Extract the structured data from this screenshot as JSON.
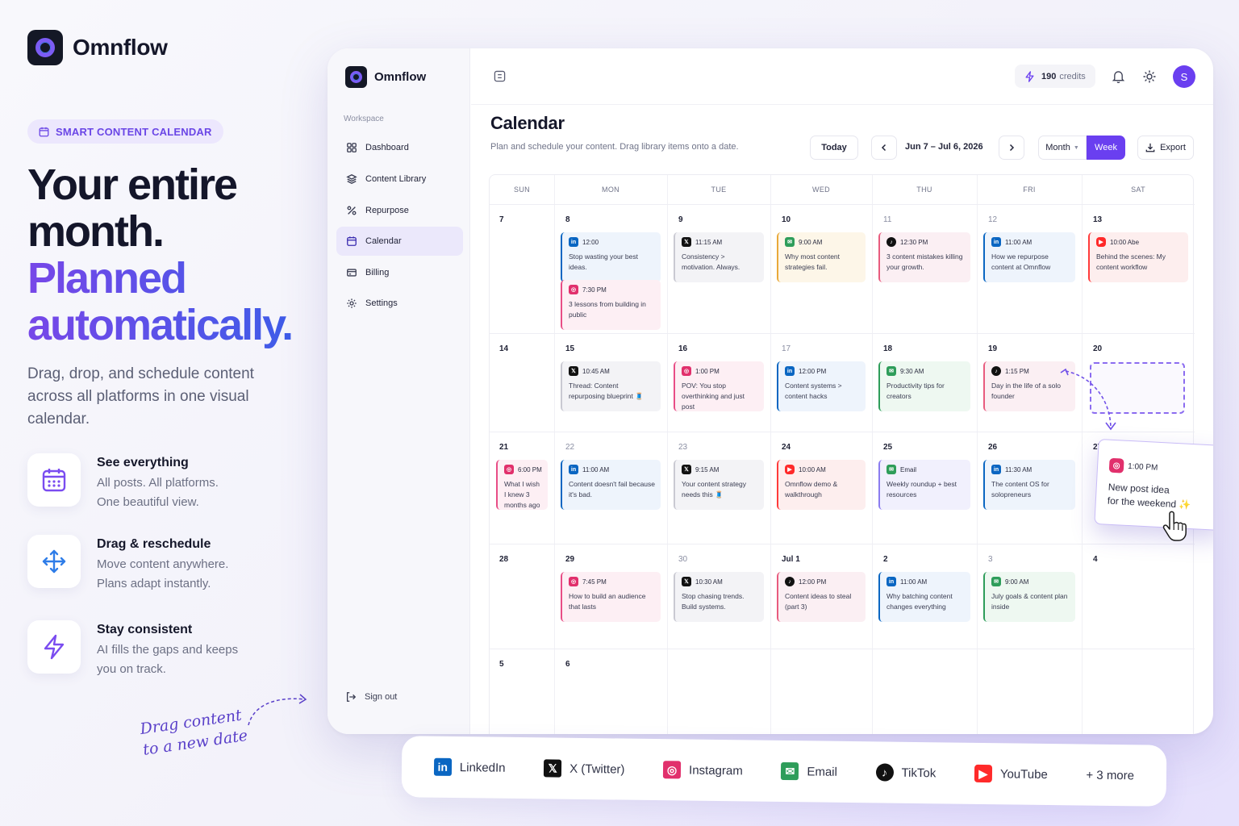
{
  "brand": {
    "name": "Omnflow"
  },
  "hero": {
    "pill": "SMART CONTENT CALENDAR",
    "line1": "Your entire",
    "line2": "month.",
    "line3": "Planned",
    "line4": "automatically.",
    "subtitle": "Drag, drop, and schedule content across all platforms in one visual calendar.",
    "features": [
      {
        "icon": "calendar-grid-icon",
        "title": "See everything",
        "desc1": "All posts. All platforms.",
        "desc2": "One beautiful view."
      },
      {
        "icon": "move-arrows-icon",
        "title": "Drag & reschedule",
        "desc1": "Move content anywhere.",
        "desc2": "Plans adapt instantly."
      },
      {
        "icon": "lightning-icon",
        "title": "Stay consistent",
        "desc1": "AI fills the gaps and keeps",
        "desc2": "you on track."
      }
    ],
    "handwritten1": "Drag content",
    "handwritten2": "to a new date"
  },
  "sidebar": {
    "workspace": "Workspace",
    "items": [
      {
        "label": "Dashboard",
        "icon": "dashboard-icon"
      },
      {
        "label": "Content Library",
        "icon": "layers-icon"
      },
      {
        "label": "Repurpose",
        "icon": "repurpose-icon"
      },
      {
        "label": "Calendar",
        "icon": "calendar-icon",
        "active": true
      },
      {
        "label": "Billing",
        "icon": "billing-icon"
      },
      {
        "label": "Settings",
        "icon": "gear-icon"
      }
    ],
    "signout": "Sign out"
  },
  "topbar": {
    "credits": "190",
    "credits_label": "credits",
    "avatar": "S"
  },
  "page": {
    "title": "Calendar",
    "desc": "Plan and schedule your content. Drag library items onto a date.",
    "today": "Today",
    "range": "Jun 7 – Jul 6, 2026",
    "month": "Month",
    "week": "Week",
    "export": "Export"
  },
  "calendar": {
    "dow": [
      "SUN",
      "MON",
      "TUE",
      "WED",
      "THU",
      "FRI",
      "SAT"
    ],
    "weeks": [
      [
        {
          "d": "7"
        },
        {
          "d": "8"
        },
        {
          "d": "9"
        },
        {
          "d": "10"
        },
        {
          "d": "11",
          "m": true
        },
        {
          "d": "12",
          "m": true
        },
        {
          "d": "13"
        }
      ],
      [
        {
          "d": "14"
        },
        {
          "d": "15"
        },
        {
          "d": "16"
        },
        {
          "d": "17",
          "m": true
        },
        {
          "d": "18"
        },
        {
          "d": "19"
        },
        {
          "d": "20"
        }
      ],
      [
        {
          "d": "21"
        },
        {
          "d": "22",
          "m": true
        },
        {
          "d": "23",
          "m": true
        },
        {
          "d": "24"
        },
        {
          "d": "25"
        },
        {
          "d": "26"
        },
        {
          "d": "27"
        }
      ],
      [
        {
          "d": "28"
        },
        {
          "d": "29"
        },
        {
          "d": "30",
          "m": true
        },
        {
          "d": "Jul 1"
        },
        {
          "d": "2"
        },
        {
          "d": "3",
          "m": true
        },
        {
          "d": "4"
        }
      ],
      [
        {
          "d": "5"
        },
        {
          "d": "6"
        },
        {
          "d": ""
        },
        {
          "d": ""
        },
        {
          "d": ""
        },
        {
          "d": ""
        },
        {
          "d": ""
        }
      ]
    ],
    "events": [
      {
        "w": 0,
        "c": 1,
        "slot": 0,
        "p": "linkedin",
        "time": "12:00",
        "text": "Stop wasting your best ideas."
      },
      {
        "w": 0,
        "c": 1,
        "slot": 1,
        "p": "instagram",
        "time": "7:30 PM",
        "text": "3 lessons from building in public"
      },
      {
        "w": 0,
        "c": 2,
        "slot": 0,
        "p": "x",
        "time": "11:15 AM",
        "text": "Consistency > motivation. Always."
      },
      {
        "w": 0,
        "c": 3,
        "slot": 0,
        "p": "email",
        "time": "9:00 AM",
        "text": "Why most content strategies fail."
      },
      {
        "w": 0,
        "c": 4,
        "slot": 0,
        "p": "tiktok",
        "time": "12:30 PM",
        "text": "3 content mistakes killing your growth."
      },
      {
        "w": 0,
        "c": 5,
        "slot": 0,
        "p": "linkedin",
        "time": "11:00 AM",
        "text": "How we repurpose content at Omnflow"
      },
      {
        "w": 0,
        "c": 6,
        "slot": 0,
        "p": "youtube",
        "time": "10:00 Abe",
        "text": "Behind the scenes: My content workflow"
      },
      {
        "w": 1,
        "c": 1,
        "slot": 0,
        "p": "x",
        "time": "10:45 AM",
        "text": "Thread: Content repurposing blueprint 🧵"
      },
      {
        "w": 1,
        "c": 2,
        "slot": 0,
        "p": "instagram",
        "time": "1:00 PM",
        "text": "POV: You stop overthinking and just post"
      },
      {
        "w": 1,
        "c": 3,
        "slot": 0,
        "p": "linkedin",
        "time": "12:00 PM",
        "text": "Content systems > content hacks"
      },
      {
        "w": 1,
        "c": 4,
        "slot": 0,
        "p": "email",
        "time": "9:30 AM",
        "text": "Productivity tips for creators"
      },
      {
        "w": 1,
        "c": 5,
        "slot": 0,
        "p": "tiktok",
        "time": "1:15 PM",
        "text": "Day in the life of a solo founder"
      },
      {
        "w": 2,
        "c": 0,
        "slot": 0,
        "p": "instagram",
        "time": "6:00 PM",
        "text": "What I wish I knew 3 months ago"
      },
      {
        "w": 2,
        "c": 1,
        "slot": 0,
        "p": "linkedin",
        "time": "11:00 AM",
        "text": "Content doesn't fail because it's bad."
      },
      {
        "w": 2,
        "c": 2,
        "slot": 0,
        "p": "x",
        "time": "9:15 AM",
        "text": "Your content strategy needs this 🧵"
      },
      {
        "w": 2,
        "c": 3,
        "slot": 0,
        "p": "youtube",
        "time": "10:00 AM",
        "text": "Omnflow demo & walkthrough"
      },
      {
        "w": 2,
        "c": 4,
        "slot": 0,
        "p": "email",
        "time": "Email",
        "text": "Weekly roundup + best resources"
      },
      {
        "w": 2,
        "c": 5,
        "slot": 0,
        "p": "linkedin",
        "time": "11:30 AM",
        "text": "The content OS for solopreneurs"
      },
      {
        "w": 3,
        "c": 1,
        "slot": 0,
        "p": "instagram",
        "time": "7:45 PM",
        "text": "How to build an audience that lasts"
      },
      {
        "w": 3,
        "c": 2,
        "slot": 0,
        "p": "x",
        "time": "10:30 AM",
        "text": "Stop chasing trends. Build systems."
      },
      {
        "w": 3,
        "c": 3,
        "slot": 0,
        "p": "tiktok",
        "time": "12:00 PM",
        "text": "Content ideas to steal (part 3)"
      },
      {
        "w": 3,
        "c": 4,
        "slot": 0,
        "p": "linkedin",
        "time": "11:00 AM",
        "text": "Why batching content changes everything"
      },
      {
        "w": 3,
        "c": 5,
        "slot": 0,
        "p": "email",
        "time": "9:00 AM",
        "text": "July goals & content plan inside"
      }
    ],
    "dragging": {
      "p": "instagram",
      "time": "1:00 PM",
      "text1": "New post idea",
      "text2": "for the weekend ✨"
    }
  },
  "platforms": [
    {
      "name": "LinkedIn",
      "p": "linkedin"
    },
    {
      "name": "X (Twitter)",
      "p": "x"
    },
    {
      "name": "Instagram",
      "p": "instagram"
    },
    {
      "name": "Email",
      "p": "email"
    },
    {
      "name": "TikTok",
      "p": "tiktok"
    },
    {
      "name": "YouTube",
      "p": "youtube"
    },
    {
      "name": "+ 3 more",
      "p": ""
    }
  ],
  "colors": {
    "accent": "#6a3ff0",
    "linkedin": "#0a66c2",
    "x": "#111111",
    "instagram": "#e1306c",
    "email": "#2e9d5a",
    "tiktok": "#111111",
    "youtube": "#ff2a2a"
  }
}
